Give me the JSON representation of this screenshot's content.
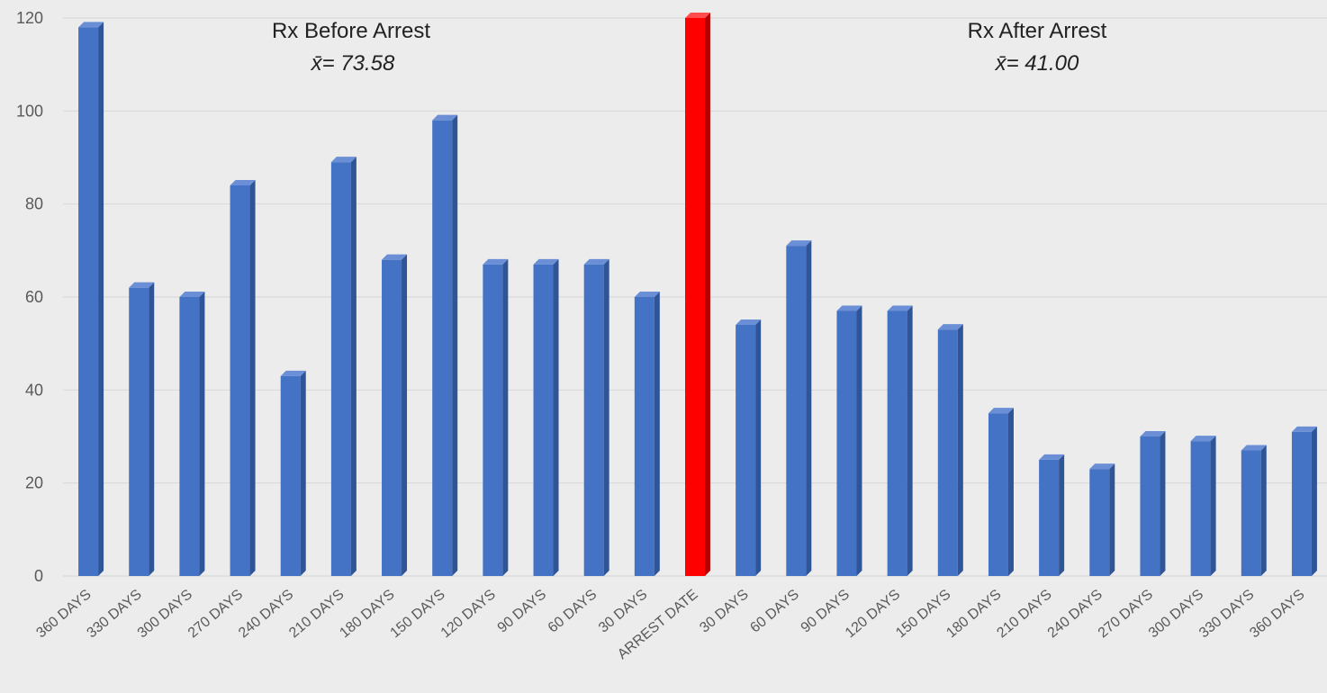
{
  "chart_data": {
    "type": "bar",
    "categories": [
      "360 DAYS",
      "330 DAYS",
      "300 DAYS",
      "270 DAYS",
      "240 DAYS",
      "210 DAYS",
      "180 DAYS",
      "150 DAYS",
      "120 DAYS",
      "90 DAYS",
      "60 DAYS",
      "30 DAYS",
      "ARREST DATE",
      "30 DAYS",
      "60 DAYS",
      "90 DAYS",
      "120 DAYS",
      "150 DAYS",
      "180 DAYS",
      "210 DAYS",
      "240 DAYS",
      "270 DAYS",
      "300 DAYS",
      "330 DAYS",
      "360 DAYS"
    ],
    "values": [
      118,
      62,
      60,
      84,
      43,
      89,
      68,
      98,
      67,
      67,
      67,
      60,
      120,
      54,
      71,
      57,
      57,
      53,
      35,
      25,
      23,
      30,
      29,
      27,
      31
    ],
    "highlight_index": 12,
    "ylim": [
      0,
      120
    ],
    "yticks": [
      0,
      20,
      40,
      60,
      80,
      100,
      120
    ],
    "grid": true,
    "colors": {
      "bar": "#4472c4",
      "bar_side": "#2f5597",
      "bar_top": "#6a8fd6",
      "highlight": "#ff0000",
      "highlight_side": "#b30000",
      "highlight_top": "#ff4d4d"
    },
    "annotations": [
      {
        "title": "Rx Before Arrest",
        "mean": "x̄= 73.58"
      },
      {
        "title": "Rx After Arrest",
        "mean": "x̄= 41.00"
      }
    ]
  }
}
